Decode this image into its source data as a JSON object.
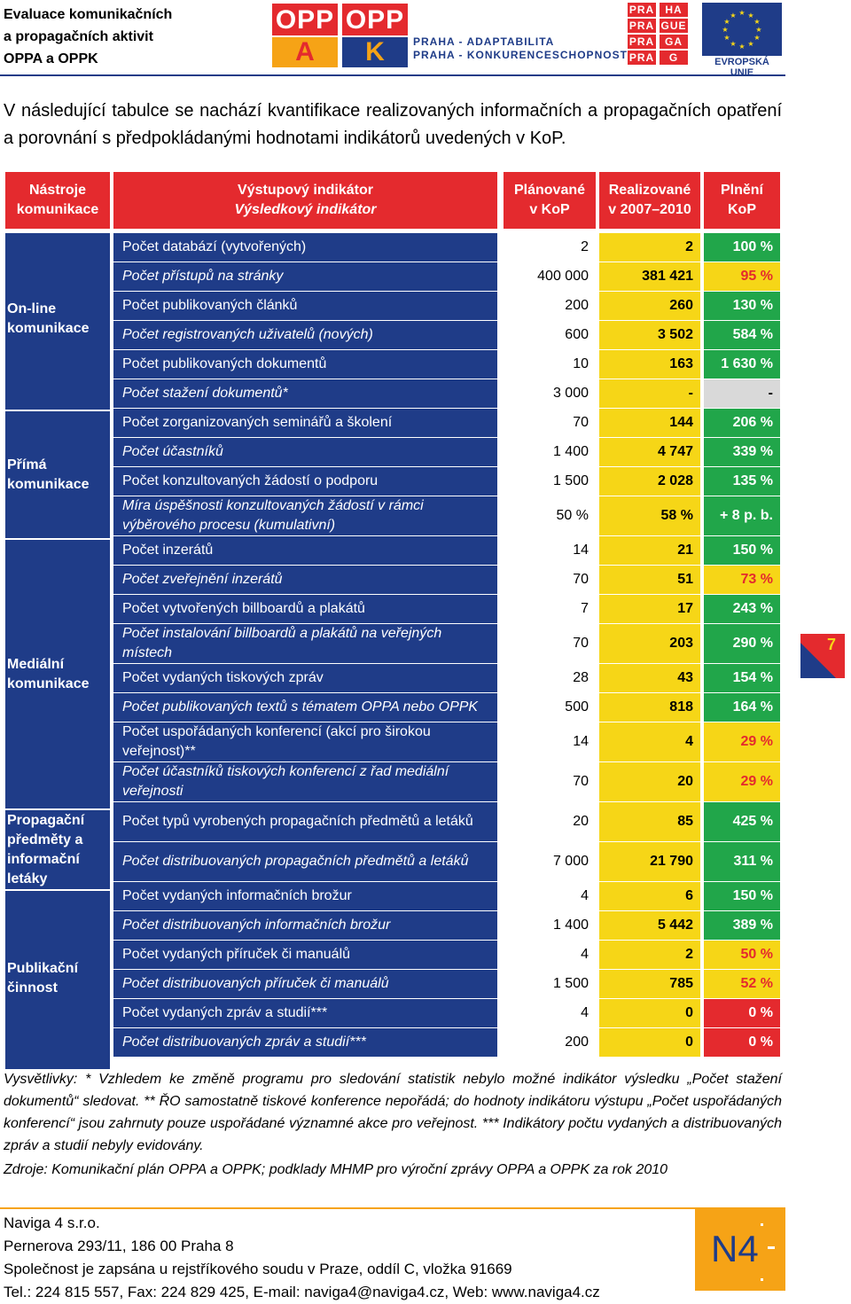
{
  "header": {
    "title_lines": [
      "Evaluace komunikačních",
      "a propagačních aktivit",
      "OPPA a OPPK"
    ],
    "logo_oppa": {
      "top": "OPP",
      "bottom": "A"
    },
    "logo_oppk": {
      "top": "OPP",
      "bottom": "K"
    },
    "logo_praha_lines": [
      "PRAHA - ADAPTABILITA",
      "PRAHA - KONKURENCESCHOPNOST"
    ],
    "logo_prague_cells": [
      "PRA",
      "HA",
      "PRA",
      "GUE",
      "PRA",
      "GA",
      "PRA",
      "G"
    ],
    "logo_eu_label": "EVROPSKÁ UNIE"
  },
  "intro": "V následující tabulce se nachází kvantifikace realizovaných informačních a propagačních opatření a porovnání s předpokládanými hodnotami indikátorů uvedených v KoP.",
  "table": {
    "headers": {
      "tools_l1": "Nástroje",
      "tools_l2": "komunikace",
      "ind_l1": "Výstupový indikátor",
      "ind_l2": "Výsledkový indikátor",
      "plan_l1": "Plánované",
      "plan_l2": "v KoP",
      "real_l1": "Realizované",
      "real_l2": "v 2007–2010",
      "pct_l1": "Plnění",
      "pct_l2": "KoP"
    },
    "categories": [
      {
        "l1": "On-line",
        "l2": "komunikace"
      },
      {
        "l1": "Přímá",
        "l2": "komunikace"
      },
      {
        "l1": "Mediální",
        "l2": "komunikace"
      },
      {
        "l1": "Propagační",
        "l2": "předměty a",
        "l3": "informační",
        "l4": "letáky"
      },
      {
        "l1": "Publikační",
        "l2": "činnost"
      }
    ],
    "rows": [
      {
        "l1": "Počet databází (vytvořených)",
        "plan": "2",
        "real": "2",
        "pct": "100 %"
      },
      {
        "l1": "Počet přístupů na stránky",
        "plan": "400 000",
        "real": "381 421",
        "pct": "95 %"
      },
      {
        "l1": "Počet publikovaných článků",
        "plan": "200",
        "real": "260",
        "pct": "130 %"
      },
      {
        "l1": "Počet registrovaných uživatelů (nových)",
        "plan": "600",
        "real": "3 502",
        "pct": "584 %"
      },
      {
        "l1": "Počet publikovaných dokumentů",
        "plan": "10",
        "real": "163",
        "pct": "1 630 %"
      },
      {
        "l1": "Počet stažení dokumentů*",
        "plan": "3 000",
        "real": "-",
        "pct": "-"
      },
      {
        "l1": "Počet zorganizovaných seminářů a školení",
        "plan": "70",
        "real": "144",
        "pct": "206 %"
      },
      {
        "l1": "Počet účastníků",
        "plan": "1 400",
        "real": "4 747",
        "pct": "339 %"
      },
      {
        "l1": "Počet konzultovaných žádostí o podporu",
        "plan": "1 500",
        "real": "2 028",
        "pct": "135 %"
      },
      {
        "l1": "Míra úspěšnosti konzultovaných žádostí v rámci",
        "l2": "výběrového procesu (kumulativní)",
        "plan": "50 %",
        "real": "58 %",
        "pct": "+ 8 p. b."
      },
      {
        "l1": "Počet inzerátů",
        "plan": "14",
        "real": "21",
        "pct": "150 %"
      },
      {
        "l1": "Počet zveřejnění inzerátů",
        "plan": "70",
        "real": "51",
        "pct": "73 %"
      },
      {
        "l1": "Počet vytvořených billboardů a plakátů",
        "plan": "7",
        "real": "17",
        "pct": "243 %"
      },
      {
        "l1": "Počet instalování billboardů a plakátů na veřejných",
        "l2": "místech",
        "plan": "70",
        "real": "203",
        "pct": "290 %"
      },
      {
        "l1": "Počet vydaných tiskových zpráv",
        "plan": "28",
        "real": "43",
        "pct": "154 %"
      },
      {
        "l1": "Počet publikovaných textů s tématem OPPA nebo OPPK",
        "plan": "500",
        "real": "818",
        "pct": "164 %"
      },
      {
        "l1": "Počet uspořádaných konferencí (akcí pro širokou",
        "l2": "veřejnost)**",
        "plan": "14",
        "real": "4",
        "pct": "29 %"
      },
      {
        "l1": "Počet účastníků tiskových konferencí z řad mediální",
        "l2": "veřejnosti",
        "plan": "70",
        "real": "20",
        "pct": "29 %"
      },
      {
        "l1": "Počet typů vyrobených propagačních předmětů a letáků",
        "plan": "20",
        "real": "85",
        "pct": "425 %"
      },
      {
        "l1": "Počet distribuovaných propagačních předmětů a letáků",
        "plan": "7 000",
        "real": "21 790",
        "pct": "311 %"
      },
      {
        "l1": "Počet vydaných informačních brožur",
        "plan": "4",
        "real": "6",
        "pct": "150 %"
      },
      {
        "l1": "Počet distribuovaných informačních brožur",
        "plan": "1 400",
        "real": "5 442",
        "pct": "389 %"
      },
      {
        "l1": "Počet vydaných příruček či manuálů",
        "plan": "4",
        "real": "2",
        "pct": "50 %"
      },
      {
        "l1": "Počet distribuovaných příruček či manuálů",
        "plan": "1 500",
        "real": "785",
        "pct": "52 %"
      },
      {
        "l1": "Počet vydaných zpráv a studií***",
        "plan": "4",
        "real": "0",
        "pct": "0 %"
      },
      {
        "l1": "Počet distribuovaných zpráv a studií***",
        "plan": "200",
        "real": "0",
        "pct": "0 %"
      }
    ]
  },
  "colors": {
    "navy": "#1f3c88",
    "red": "#e42a2e",
    "yellow": "#f6d617",
    "green": "#21a64a",
    "orange": "#f6a316",
    "grey": "#d9d9d9"
  },
  "notes": "Vysvětlivky: * Vzhledem ke změně programu pro sledování statistik nebylo možné indikátor výsledku „Počet stažení dokumentů“ sledovat. ** ŘO samostatně tiskové konference nepořádá; do hodnoty indikátoru výstupu „Počet uspořádaných konferencí“ jsou zahrnuty pouze uspořádané významné akce pro veřejnost. *** Indikátory počtu vydaných a distribuovaných zpráv a studií nebyly evidovány.",
  "source": "Zdroje: Komunikační plán OPPA a OPPK; podklady MHMP pro výroční zprávy OPPA a OPPK za rok 2010",
  "page_number": "7",
  "footer": {
    "company": "Naviga 4  s.r.o.",
    "address": "Pernerova 293/11, 186 00 Praha 8",
    "registry": "Společnost je zapsána u rejstříkového soudu v Praze, oddíl C, vložka 91669",
    "contact": "Tel.: 224 815 557, Fax: 224 829 425, E-mail: naviga4@naviga4.cz, Web: www.naviga4.cz",
    "logo_text": "N4"
  }
}
